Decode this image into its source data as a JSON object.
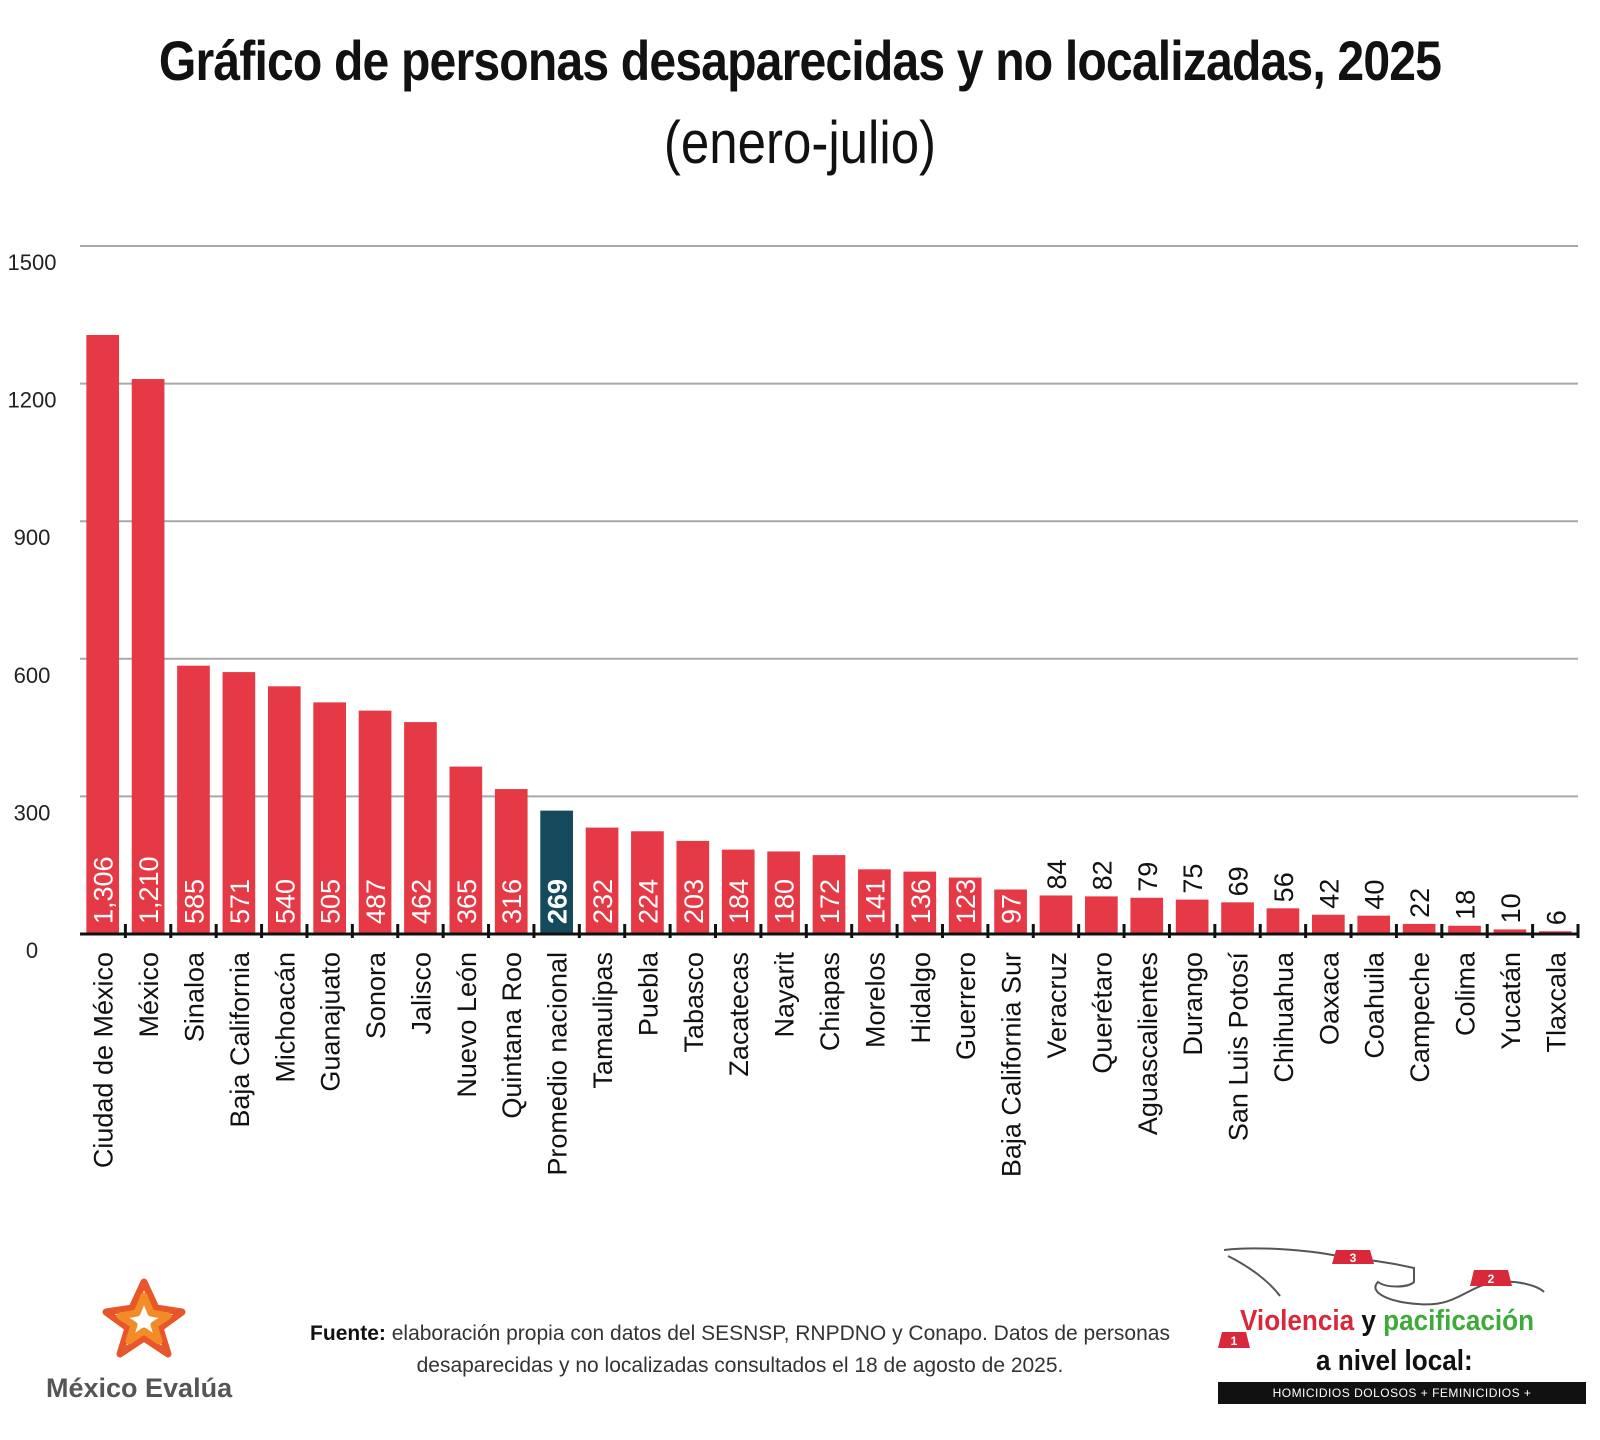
{
  "header": {
    "title": "Gráfico de personas desaparecidas y no localizadas, 2025",
    "subtitle": "(enero-julio)"
  },
  "chart_data": {
    "type": "bar",
    "categories": [
      "Ciudad de México",
      "México",
      "Sinaloa",
      "Baja California",
      "Michoacán",
      "Guanajuato",
      "Sonora",
      "Jalisco",
      "Nuevo León",
      "Quintana Roo",
      "Promedio nacional",
      "Tamaulipas",
      "Puebla",
      "Tabasco",
      "Zacatecas",
      "Nayarit",
      "Chiapas",
      "Morelos",
      "Hidalgo",
      "Guerrero",
      "Baja California Sur",
      "Veracruz",
      "Querétaro",
      "Aguascalientes",
      "Durango",
      "San Luis Potosí",
      "Chihuahua",
      "Oaxaca",
      "Coahuila",
      "Campeche",
      "Colima",
      "Yucatán",
      "Tlaxcala"
    ],
    "values": [
      1306,
      1210,
      585,
      571,
      540,
      505,
      487,
      462,
      365,
      316,
      269,
      232,
      224,
      203,
      184,
      180,
      172,
      141,
      136,
      123,
      97,
      84,
      82,
      79,
      75,
      69,
      56,
      42,
      40,
      22,
      18,
      10,
      6
    ],
    "value_labels": [
      "1,306",
      "1,210",
      "585",
      "571",
      "540",
      "505",
      "487",
      "462",
      "365",
      "316",
      "269",
      "232",
      "224",
      "203",
      "184",
      "180",
      "172",
      "141",
      "136",
      "123",
      "97",
      "84",
      "82",
      "79",
      "75",
      "69",
      "56",
      "42",
      "40",
      "22",
      "18",
      "10",
      "6"
    ],
    "highlight_category": "Promedio nacional",
    "yticks": [
      "0",
      "300",
      "600",
      "900",
      "1200",
      "1500"
    ],
    "ylim": [
      0,
      1500
    ],
    "grid": true,
    "legend": "none",
    "colors": {
      "bar": "#e63946",
      "highlight": "#154a5c",
      "grid": "#a8a8a8"
    }
  },
  "footer": {
    "logo_text": "México Evalúa",
    "source_label": "Fuente:",
    "source_text": "elaboración propia con datos del SESNSP, RNPDNO y Conapo. Datos de personas desaparecidas y no localizadas consultados el 18 de agosto de 2025.",
    "campaign": {
      "word1": "Violencia",
      "word2": "y",
      "word3": "pacificación",
      "line2": "a nivel local:",
      "banner": "HOMICIDIOS DOLOSOS + FEMINICIDIOS + DESAPARICIONES",
      "markers": [
        "1",
        "2",
        "3"
      ]
    }
  }
}
